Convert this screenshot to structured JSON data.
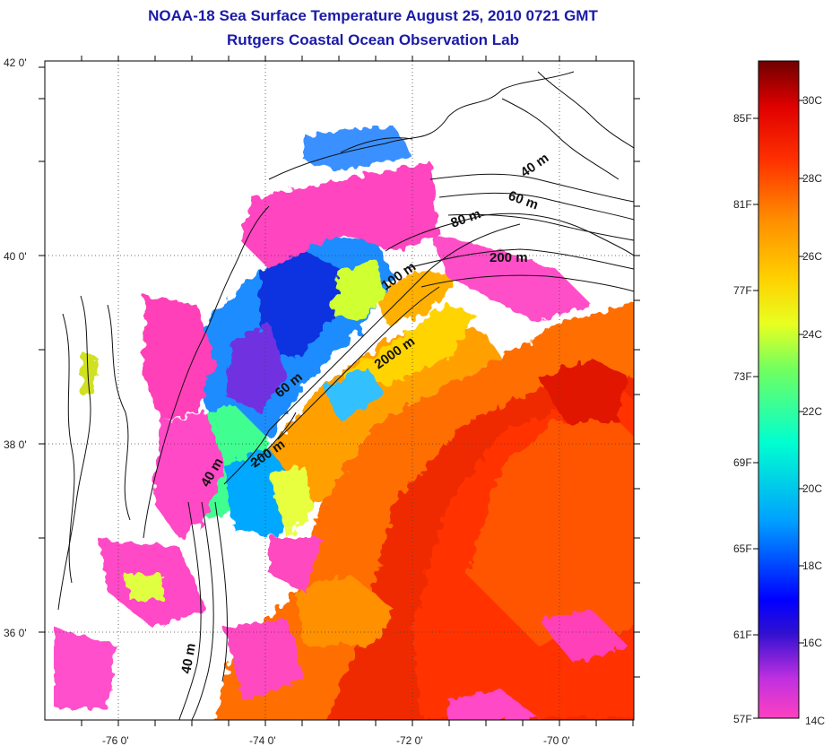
{
  "title": "NOAA-18 Sea Surface Temperature August 25, 2010 0721 GMT",
  "subtitle": "Rutgers Coastal Ocean Observation Lab",
  "map": {
    "lon_range": [
      -77,
      -69
    ],
    "lat_range": [
      35,
      42
    ],
    "x_ticks": [
      {
        "lon": -76,
        "label": "-76 0'"
      },
      {
        "lon": -74,
        "label": "-74 0'"
      },
      {
        "lon": -72,
        "label": "-72 0'"
      },
      {
        "lon": -70,
        "label": "-70 0'"
      }
    ],
    "y_ticks": [
      {
        "lat": 42,
        "label": "42 0'"
      },
      {
        "lat": 40,
        "label": "40 0'"
      },
      {
        "lat": 38,
        "label": "38 0'"
      },
      {
        "lat": 36,
        "label": "36 0'"
      }
    ],
    "grid": "dotted",
    "isobath_labels": [
      "40 m",
      "60 m",
      "80 m",
      "200 m",
      "100 m",
      "2000 m",
      "60 m",
      "200 m",
      "40 m",
      "40 m"
    ]
  },
  "colorbar": {
    "range_c": [
      14,
      31
    ],
    "fahrenheit_labels": [
      "85F",
      "81F",
      "77F",
      "73F",
      "69F",
      "65F",
      "61F",
      "57F"
    ],
    "celsius_labels": [
      "30C",
      "28C",
      "26C",
      "24C",
      "22C",
      "20C",
      "18C",
      "16C",
      "14C"
    ],
    "colors": [
      "#7a0000",
      "#c00000",
      "#ff1a00",
      "#ff6a00",
      "#ffa000",
      "#ffd800",
      "#e8ff20",
      "#80ff60",
      "#20ffd0",
      "#00b0ff",
      "#0040ff",
      "#0000d0",
      "#a020f0",
      "#ff40c0"
    ]
  }
}
